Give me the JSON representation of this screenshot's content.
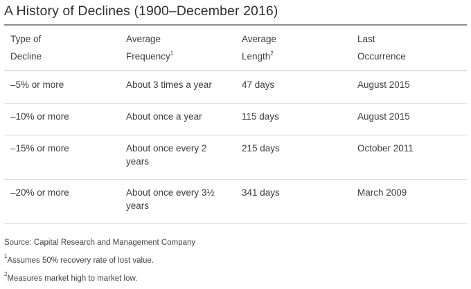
{
  "title": "A History of Declines (1900–December 2016)",
  "headers": [
    {
      "line1": "Type of",
      "line2": "Decline",
      "sup": ""
    },
    {
      "line1": "Average",
      "line2": "Frequency",
      "sup": "1"
    },
    {
      "line1": "Average",
      "line2": "Length",
      "sup": "2"
    },
    {
      "line1": "Last",
      "line2": "Occurrence",
      "sup": ""
    }
  ],
  "rows": [
    {
      "type": "–5% or more",
      "frequency": "About 3 times a year",
      "length": "47 days",
      "last": "August 2015"
    },
    {
      "type": "–10% or more",
      "frequency": "About once a year",
      "length": "115 days",
      "last": "August 2015"
    },
    {
      "type": "–15% or more",
      "frequency": "About once every 2 years",
      "length": "215 days",
      "last": "October 2011"
    },
    {
      "type": "–20% or more",
      "frequency": "About once every 3½ years",
      "length": "341 days",
      "last": "March 2009"
    }
  ],
  "source": "Source: Capital Research and Management Company",
  "footnotes": [
    {
      "mark": "1",
      "text": "Assumes 50% recovery rate of lost value."
    },
    {
      "mark": "2",
      "text": "Measures market high to market low."
    }
  ]
}
